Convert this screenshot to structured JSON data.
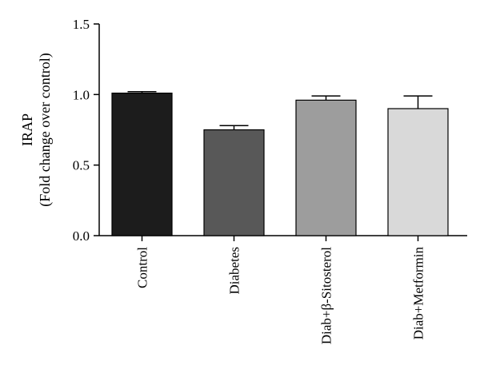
{
  "chart_data": {
    "type": "bar",
    "categories": [
      "Control",
      "Diabetes",
      "Diab+β-Sitosterol",
      "Diab+Metformin"
    ],
    "values": [
      1.01,
      0.75,
      0.96,
      0.9
    ],
    "errors": [
      0.01,
      0.03,
      0.03,
      0.09
    ],
    "colors": [
      "#1c1c1c",
      "#585858",
      "#9d9d9d",
      "#d9d9d9"
    ],
    "ylabel_line1": "IRAP",
    "ylabel_line2": "(Fold change over control)",
    "ylim": [
      0,
      1.5
    ],
    "yticks": [
      "0.0",
      "0.5",
      "1.0",
      "1.5"
    ],
    "ytick_values": [
      0,
      0.5,
      1.0,
      1.5
    ],
    "grid": false,
    "legend": "none"
  }
}
